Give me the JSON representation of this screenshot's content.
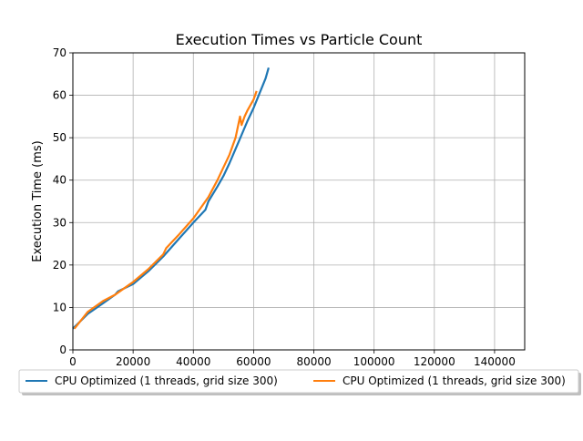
{
  "chart_data": {
    "type": "line",
    "title": "Execution Times vs Particle Count",
    "xlabel": "",
    "ylabel": "Execution Time (ms)",
    "xlim": [
      0,
      150000
    ],
    "ylim": [
      0,
      70
    ],
    "xticks": [
      0,
      20000,
      40000,
      60000,
      80000,
      100000,
      120000,
      140000
    ],
    "xtick_labels": [
      "0",
      "20000",
      "40000",
      "60000",
      "80000",
      "100000",
      "120000",
      "140000"
    ],
    "yticks": [
      0,
      10,
      20,
      30,
      40,
      50,
      60,
      70
    ],
    "ytick_labels": [
      "0",
      "10",
      "20",
      "30",
      "40",
      "50",
      "60",
      "70"
    ],
    "grid": true,
    "legend_placement": "below plot, centered, two columns, with shadow",
    "series": [
      {
        "name": "CPU Optimized (1 threads, grid size 300)",
        "color": "#1f77b4",
        "x": [
          0,
          5000,
          10000,
          14000,
          15000,
          20000,
          25000,
          30000,
          35000,
          40000,
          44000,
          45000,
          48000,
          50000,
          52000,
          55000,
          58000,
          60000,
          62000,
          64000,
          65000
        ],
        "y": [
          5,
          8.5,
          11,
          13,
          13.8,
          15.5,
          18.5,
          22,
          26,
          30,
          33,
          35,
          38.5,
          41,
          44,
          49,
          54,
          57,
          60.5,
          64,
          66.5
        ]
      },
      {
        "name": "CPU Optimized (1 threads, grid size 300)",
        "color": "#ff7f0e",
        "x": [
          500,
          5000,
          10000,
          14000,
          19000,
          20000,
          25000,
          30000,
          31000,
          35000,
          40000,
          42000,
          45000,
          48000,
          50000,
          52000,
          54000,
          55500,
          56000,
          57000,
          58000,
          60000,
          61000
        ],
        "y": [
          5,
          9,
          11.5,
          13,
          15.5,
          16,
          19,
          22.5,
          24,
          27,
          31,
          33,
          36,
          40,
          43,
          46,
          50,
          55,
          53,
          55,
          56.5,
          59,
          61
        ]
      }
    ]
  }
}
